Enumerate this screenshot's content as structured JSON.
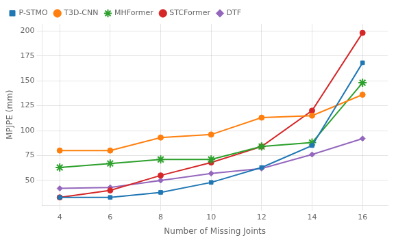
{
  "chart_data": {
    "type": "line",
    "xlabel": "Number of Missing Joints",
    "ylabel": "MPJPE (mm)",
    "x": [
      4,
      6,
      8,
      10,
      12,
      14,
      16
    ],
    "series": [
      {
        "name": "P-STMO",
        "color": "#1f77b4",
        "marker": "square",
        "values": [
          33,
          33,
          38,
          48,
          63,
          85,
          168
        ]
      },
      {
        "name": "T3D-CNN",
        "color": "#ff7f0e",
        "marker": "circle",
        "values": [
          80,
          80,
          93,
          96,
          113,
          115,
          136
        ]
      },
      {
        "name": "MHFormer",
        "color": "#2ca02c",
        "marker": "star",
        "values": [
          63,
          67,
          71,
          71,
          84,
          88,
          148
        ]
      },
      {
        "name": "STCFormer",
        "color": "#d62728",
        "marker": "circle",
        "values": [
          33,
          40,
          55,
          68,
          84,
          120,
          198
        ]
      },
      {
        "name": "DTF",
        "color": "#9467bd",
        "marker": "diamond",
        "values": [
          42,
          43,
          50,
          57,
          62,
          76,
          92
        ]
      }
    ],
    "xlim": [
      3.3,
      17.0
    ],
    "xticks": [
      4,
      6,
      8,
      10,
      12,
      14,
      16
    ],
    "ylim": [
      25,
      207
    ],
    "yticks": [
      50,
      75,
      100,
      125,
      150,
      175,
      200
    ],
    "grid": true,
    "legend": "upper left"
  }
}
